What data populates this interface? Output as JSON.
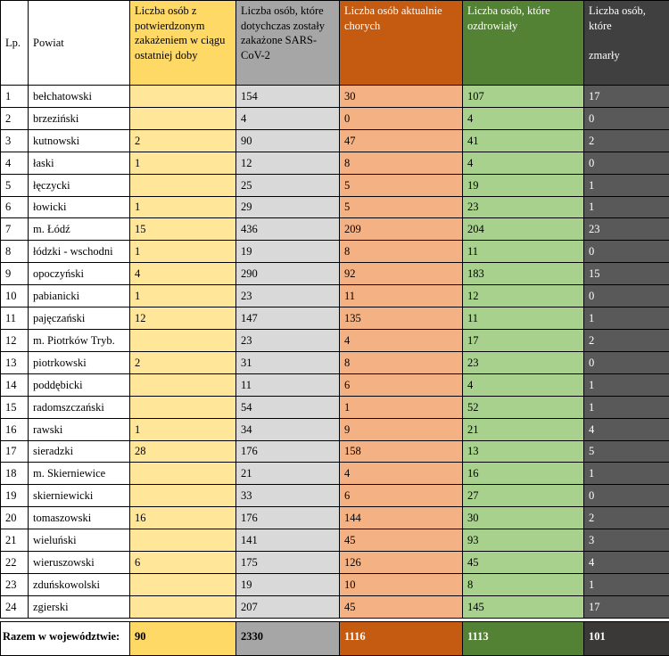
{
  "table": {
    "headers": {
      "lp": "Lp.",
      "powiat": "Powiat",
      "new_cases": "Liczba osób z potwierdzonym zakażeniem w ciągu ostatniej doby",
      "infected_total": "Liczba osób, które dotychczas zostały zakażone SARS-CoV-2",
      "currently_sick": "Liczba osób aktualnie chorych",
      "recovered": "Liczba osób, które ozdrowiały",
      "died_line1": "Liczba osób, które",
      "died_line2": "zmarły"
    },
    "rows": [
      {
        "lp": "1",
        "powiat": "bełchatowski",
        "new_cases": "",
        "infected_total": "154",
        "currently_sick": "30",
        "recovered": "107",
        "died": "17"
      },
      {
        "lp": "2",
        "powiat": "brzeziński",
        "new_cases": "",
        "infected_total": "4",
        "currently_sick": "0",
        "recovered": "4",
        "died": "0"
      },
      {
        "lp": "3",
        "powiat": "kutnowski",
        "new_cases": "2",
        "infected_total": "90",
        "currently_sick": "47",
        "recovered": "41",
        "died": "2"
      },
      {
        "lp": "4",
        "powiat": "łaski",
        "new_cases": "1",
        "infected_total": "12",
        "currently_sick": "8",
        "recovered": "4",
        "died": "0"
      },
      {
        "lp": "5",
        "powiat": "łęczycki",
        "new_cases": "",
        "infected_total": "25",
        "currently_sick": "5",
        "recovered": "19",
        "died": "1"
      },
      {
        "lp": "6",
        "powiat": "łowicki",
        "new_cases": "1",
        "infected_total": "29",
        "currently_sick": "5",
        "recovered": "23",
        "died": "1"
      },
      {
        "lp": "7",
        "powiat": "m. Łódź",
        "new_cases": "15",
        "infected_total": "436",
        "currently_sick": "209",
        "recovered": "204",
        "died": "23"
      },
      {
        "lp": "8",
        "powiat": "łódzki - wschodni",
        "new_cases": "1",
        "infected_total": "19",
        "currently_sick": "8",
        "recovered": "11",
        "died": "0"
      },
      {
        "lp": "9",
        "powiat": "opoczyński",
        "new_cases": "4",
        "infected_total": "290",
        "currently_sick": "92",
        "recovered": "183",
        "died": "15"
      },
      {
        "lp": "10",
        "powiat": "pabianicki",
        "new_cases": "1",
        "infected_total": "23",
        "currently_sick": "11",
        "recovered": "12",
        "died": "0"
      },
      {
        "lp": "11",
        "powiat": "pajęczański",
        "new_cases": "12",
        "infected_total": "147",
        "currently_sick": "135",
        "recovered": "11",
        "died": "1"
      },
      {
        "lp": "12",
        "powiat": "m. Piotrków Tryb.",
        "new_cases": "",
        "infected_total": "23",
        "currently_sick": "4",
        "recovered": "17",
        "died": "2"
      },
      {
        "lp": "13",
        "powiat": "piotrkowski",
        "new_cases": "2",
        "infected_total": "31",
        "currently_sick": "8",
        "recovered": "23",
        "died": "0"
      },
      {
        "lp": "14",
        "powiat": "poddębicki",
        "new_cases": "",
        "infected_total": "11",
        "currently_sick": "6",
        "recovered": "4",
        "died": "1"
      },
      {
        "lp": "15",
        "powiat": "radomszczański",
        "new_cases": "",
        "infected_total": "54",
        "currently_sick": "1",
        "recovered": "52",
        "died": "1"
      },
      {
        "lp": "16",
        "powiat": "rawski",
        "new_cases": "1",
        "infected_total": "34",
        "currently_sick": "9",
        "recovered": "21",
        "died": "4"
      },
      {
        "lp": "17",
        "powiat": "sieradzki",
        "new_cases": "28",
        "infected_total": "176",
        "currently_sick": "158",
        "recovered": "13",
        "died": "5"
      },
      {
        "lp": "18",
        "powiat": "m. Skierniewice",
        "new_cases": "",
        "infected_total": "21",
        "currently_sick": "4",
        "recovered": "16",
        "died": "1"
      },
      {
        "lp": "19",
        "powiat": "skierniewicki",
        "new_cases": "",
        "infected_total": "33",
        "currently_sick": "6",
        "recovered": "27",
        "died": "0"
      },
      {
        "lp": "20",
        "powiat": "tomaszowski",
        "new_cases": "16",
        "infected_total": "176",
        "currently_sick": "144",
        "recovered": "30",
        "died": "2"
      },
      {
        "lp": "21",
        "powiat": "wieluński",
        "new_cases": "",
        "infected_total": "141",
        "currently_sick": "45",
        "recovered": "93",
        "died": "3"
      },
      {
        "lp": "22",
        "powiat": "wieruszowski",
        "new_cases": "6",
        "infected_total": "175",
        "currently_sick": "126",
        "recovered": "45",
        "died": "4"
      },
      {
        "lp": "23",
        "powiat": "zduńskowolski",
        "new_cases": "",
        "infected_total": "19",
        "currently_sick": "10",
        "recovered": "8",
        "died": "1"
      },
      {
        "lp": "24",
        "powiat": "zgierski",
        "new_cases": "",
        "infected_total": "207",
        "currently_sick": "45",
        "recovered": "145",
        "died": "17"
      }
    ],
    "totals": {
      "label": "Razem w województwie:",
      "new_cases": "90",
      "infected_total": "2330",
      "currently_sick": "1116",
      "recovered": "1113",
      "died": "101"
    }
  },
  "colors": {
    "new_cases_header": "#ffd966",
    "new_cases_cell": "#ffe699",
    "infected_header": "#a6a6a6",
    "infected_cell": "#d9d9d9",
    "sick_header": "#c55a11",
    "sick_cell": "#f4b183",
    "recovered_header": "#548235",
    "recovered_cell": "#a9d18e",
    "died_header": "#404040",
    "died_cell": "#595959"
  }
}
